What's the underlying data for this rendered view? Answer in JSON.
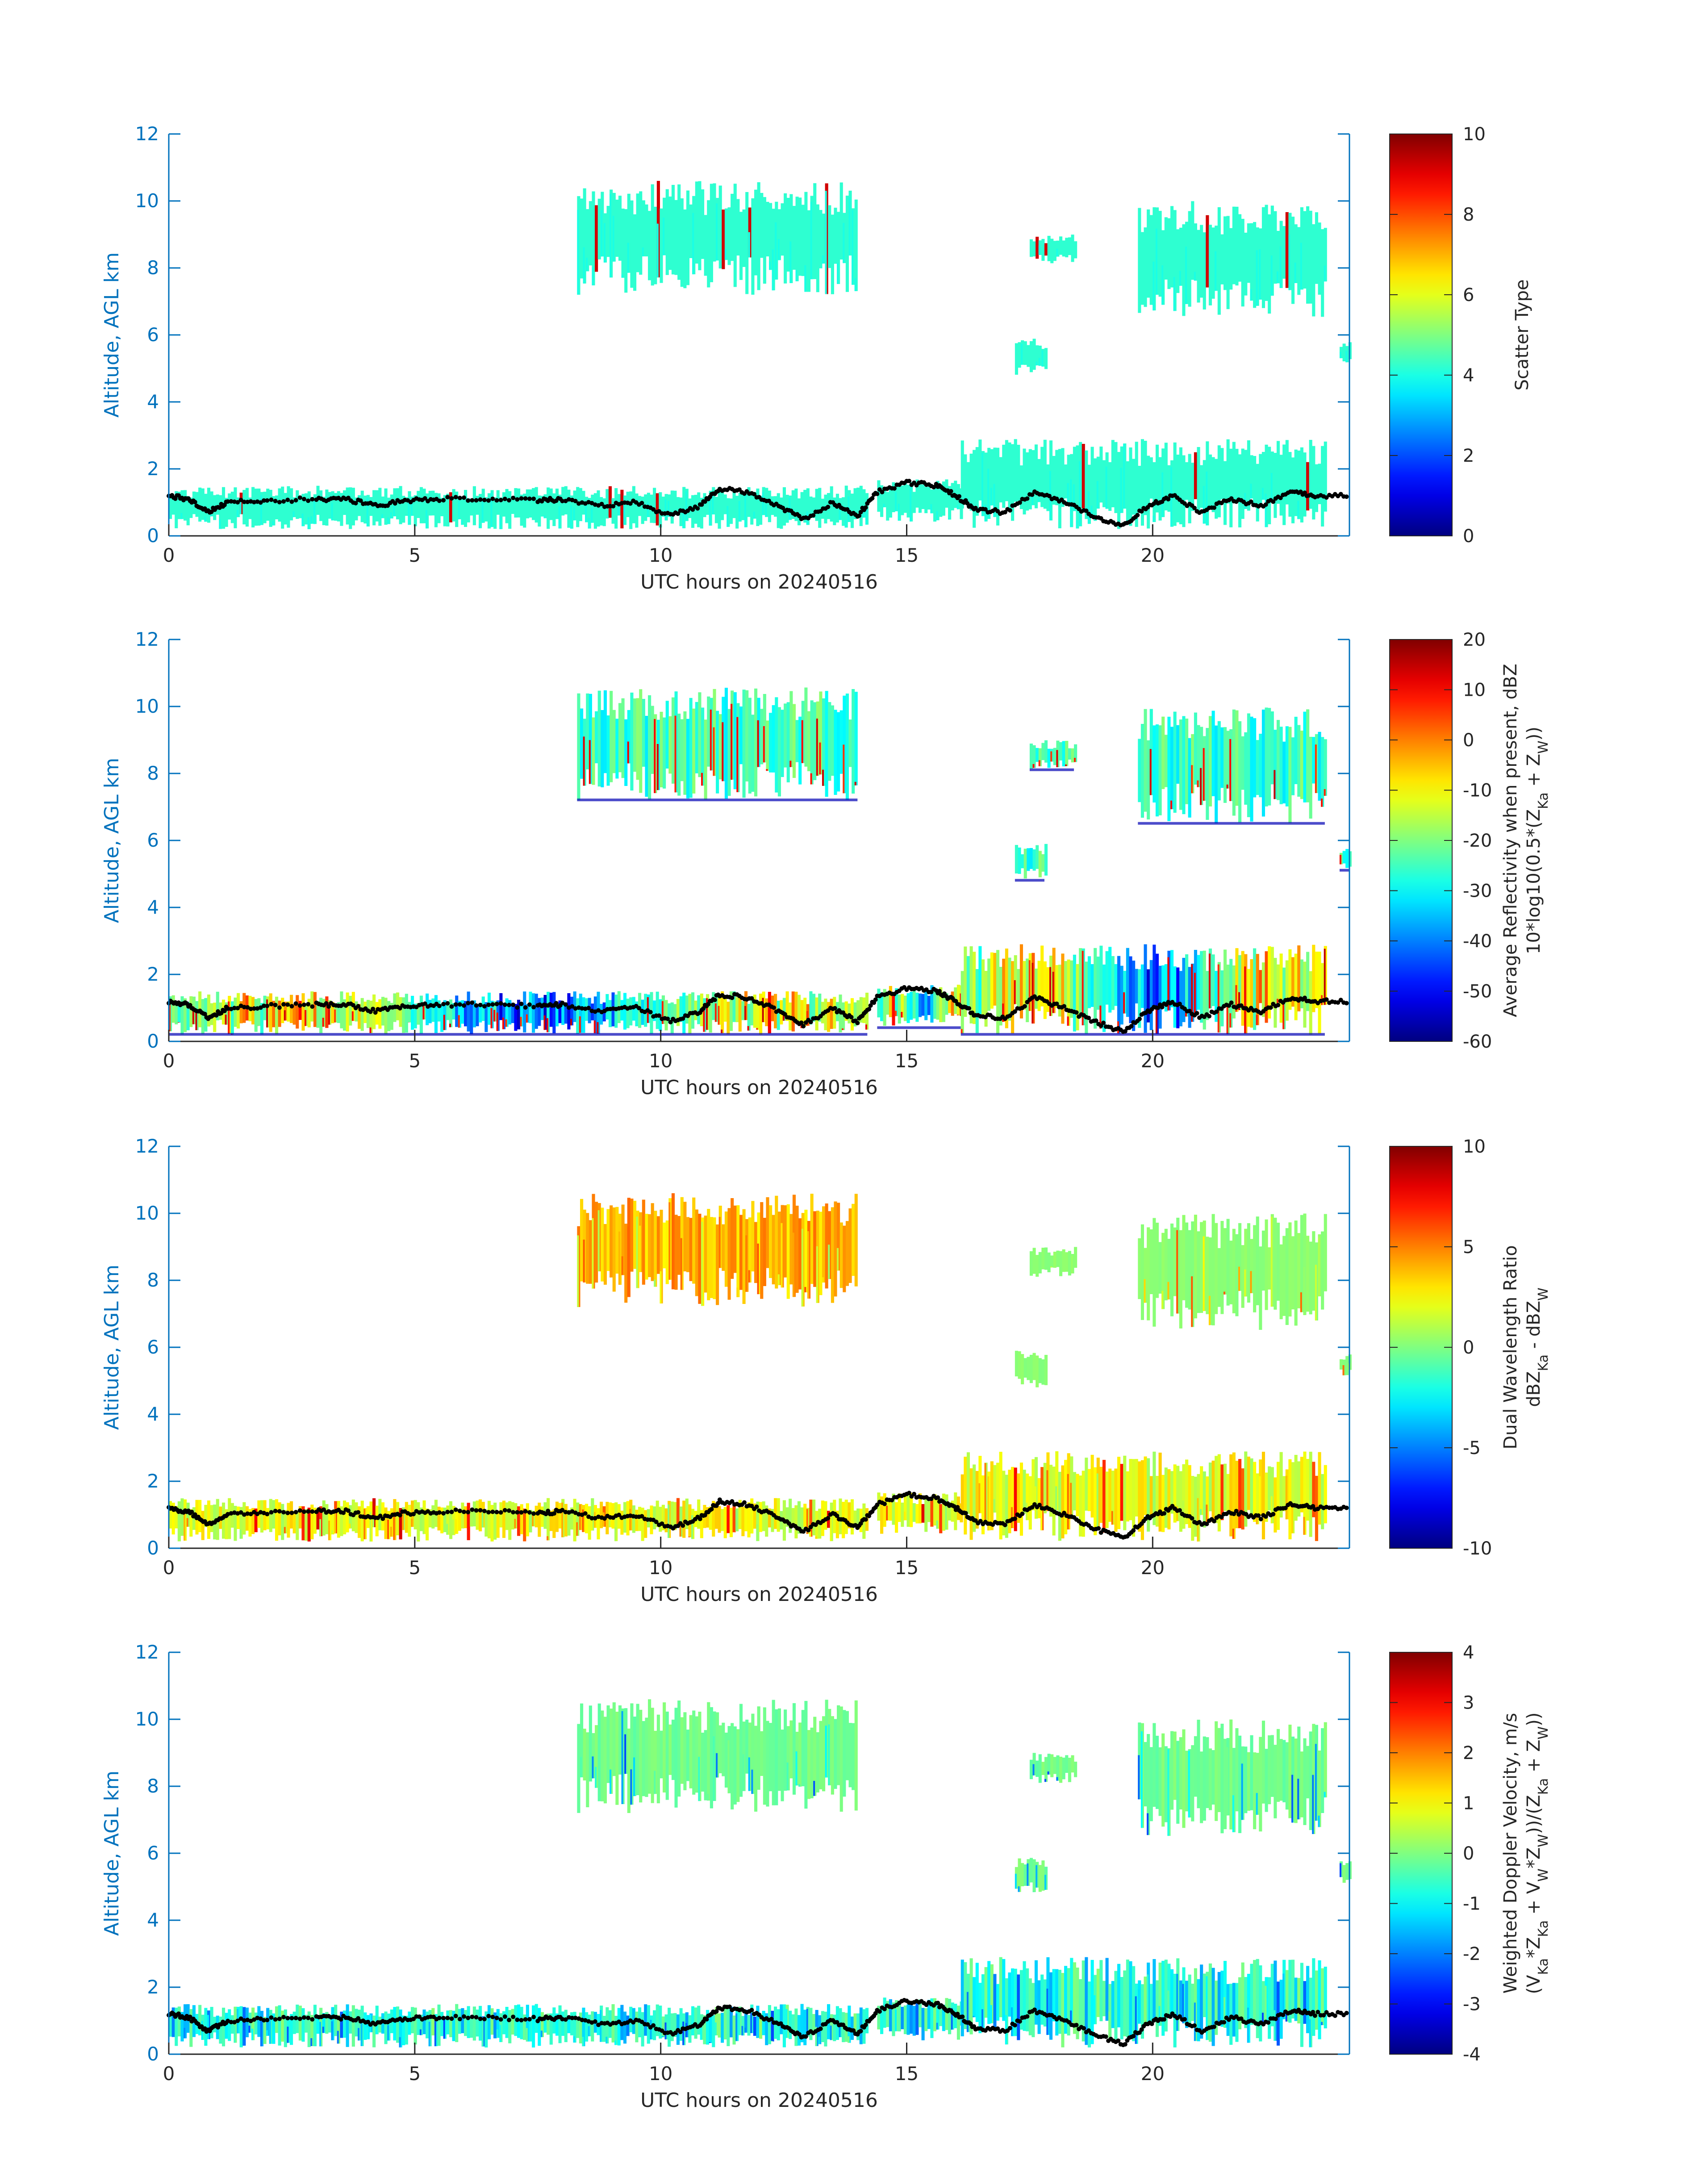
{
  "figure": {
    "date": "20240516"
  },
  "colors": {
    "axis": "#0072BD",
    "text": "#262626",
    "bg": "#ffffff",
    "cloud_dots": "#000000"
  },
  "colormap": "jet",
  "chart_data": [
    {
      "type": "heatmap",
      "xlabel": "UTC hours on 20240516",
      "ylabel": "Altitude, AGL km",
      "xlim": [
        0,
        24
      ],
      "ylim": [
        0,
        12
      ],
      "xticks": [
        0,
        5,
        10,
        15,
        20
      ],
      "yticks": [
        0,
        2,
        4,
        6,
        8,
        10,
        12
      ],
      "colorbar": {
        "label": [
          "Scatter Type"
        ],
        "clim": [
          0,
          10
        ],
        "ticks": [
          0,
          2,
          4,
          6,
          8,
          10
        ]
      },
      "field": "scatter_type",
      "typical_value": 4.2,
      "grid": false
    },
    {
      "type": "heatmap",
      "xlabel": "UTC hours on 20240516",
      "ylabel": "Altitude, AGL km",
      "xlim": [
        0,
        24
      ],
      "ylim": [
        0,
        12
      ],
      "xticks": [
        0,
        5,
        10,
        15,
        20
      ],
      "yticks": [
        0,
        2,
        4,
        6,
        8,
        10,
        12
      ],
      "colorbar": {
        "label": [
          "Average Reflectivity when present, dBZ",
          "10*log10(0.5*(Z_Ka + Z_W))"
        ],
        "clim": [
          -60,
          20
        ],
        "ticks": [
          -60,
          -50,
          -40,
          -30,
          -20,
          -10,
          0,
          10,
          20
        ]
      },
      "field": "reflectivity",
      "typical_value": -28,
      "grid": false
    },
    {
      "type": "heatmap",
      "xlabel": "UTC hours on 20240516",
      "ylabel": "Altitude, AGL km",
      "xlim": [
        0,
        24
      ],
      "ylim": [
        0,
        12
      ],
      "xticks": [
        0,
        5,
        10,
        15,
        20
      ],
      "yticks": [
        0,
        2,
        4,
        6,
        8,
        10,
        12
      ],
      "colorbar": {
        "label": [
          "Dual Wavelength Ratio",
          "dBZ_Ka - dBZ_W"
        ],
        "clim": [
          -10,
          10
        ],
        "ticks": [
          -10,
          -5,
          0,
          5,
          10
        ]
      },
      "field": "dwr",
      "typical_value": 1.2,
      "grid": false
    },
    {
      "type": "heatmap",
      "xlabel": "UTC hours on 20240516",
      "ylabel": "Altitude, AGL km",
      "xlim": [
        0,
        24
      ],
      "ylim": [
        0,
        12
      ],
      "xticks": [
        0,
        5,
        10,
        15,
        20
      ],
      "yticks": [
        0,
        2,
        4,
        6,
        8,
        10,
        12
      ],
      "colorbar": {
        "label": [
          "Weighted Doppler Velocity, m/s",
          "(V_Ka*Z_Ka + V_W*Z_W))/(Z_Ka + Z_W))"
        ],
        "clim": [
          -4,
          4
        ],
        "ticks": [
          -4,
          -3,
          -2,
          -1,
          0,
          1,
          2,
          3,
          4
        ]
      },
      "field": "doppler",
      "typical_value": -0.6,
      "grid": false
    }
  ],
  "cloud_regions": [
    {
      "t0": 8.3,
      "t1": 14.0,
      "bottom": 7.2,
      "top": 10.6,
      "kind": "upper"
    },
    {
      "t0": 17.5,
      "t1": 18.4,
      "bottom": 8.1,
      "top": 9.0,
      "kind": "upper"
    },
    {
      "t0": 19.7,
      "t1": 23.5,
      "bottom": 6.5,
      "top": 10.0,
      "kind": "upper"
    },
    {
      "t0": 17.2,
      "t1": 17.8,
      "bottom": 4.8,
      "top": 5.9,
      "kind": "mid"
    },
    {
      "t0": 23.8,
      "t1": 24.0,
      "bottom": 5.1,
      "top": 5.8,
      "kind": "mid"
    },
    {
      "t0": 0.0,
      "t1": 14.2,
      "bottom": 0.2,
      "top": 1.5,
      "kind": "low"
    },
    {
      "t0": 14.4,
      "t1": 16.1,
      "bottom": 0.4,
      "top": 1.7,
      "kind": "low"
    },
    {
      "t0": 16.1,
      "t1": 23.5,
      "bottom": 0.2,
      "top": 2.9,
      "kind": "low"
    }
  ],
  "cloud_base": [
    [
      0.0,
      1.2
    ],
    [
      0.4,
      1.1
    ],
    [
      0.8,
      0.7
    ],
    [
      1.2,
      1.0
    ],
    [
      2.0,
      1.05
    ],
    [
      3.0,
      1.1
    ],
    [
      3.6,
      1.1
    ],
    [
      4.2,
      0.9
    ],
    [
      4.8,
      1.05
    ],
    [
      5.5,
      1.1
    ],
    [
      6.5,
      1.1
    ],
    [
      7.5,
      1.05
    ],
    [
      8.0,
      1.1
    ],
    [
      8.8,
      0.9
    ],
    [
      9.5,
      1.0
    ],
    [
      10.2,
      0.6
    ],
    [
      10.8,
      0.9
    ],
    [
      11.2,
      1.4
    ],
    [
      11.8,
      1.3
    ],
    [
      12.4,
      0.9
    ],
    [
      12.9,
      0.5
    ],
    [
      13.5,
      1.0
    ],
    [
      14.0,
      0.6
    ],
    [
      14.4,
      1.3
    ],
    [
      15.0,
      1.6
    ],
    [
      15.6,
      1.5
    ],
    [
      16.0,
      1.2
    ],
    [
      16.4,
      0.8
    ],
    [
      17.0,
      0.7
    ],
    [
      17.6,
      1.3
    ],
    [
      18.2,
      1.0
    ],
    [
      18.8,
      0.6
    ],
    [
      19.4,
      0.3
    ],
    [
      19.9,
      0.9
    ],
    [
      20.4,
      1.2
    ],
    [
      21.0,
      0.7
    ],
    [
      21.6,
      1.1
    ],
    [
      22.2,
      0.9
    ],
    [
      22.8,
      1.3
    ],
    [
      23.3,
      1.2
    ],
    [
      24.0,
      1.2
    ]
  ]
}
